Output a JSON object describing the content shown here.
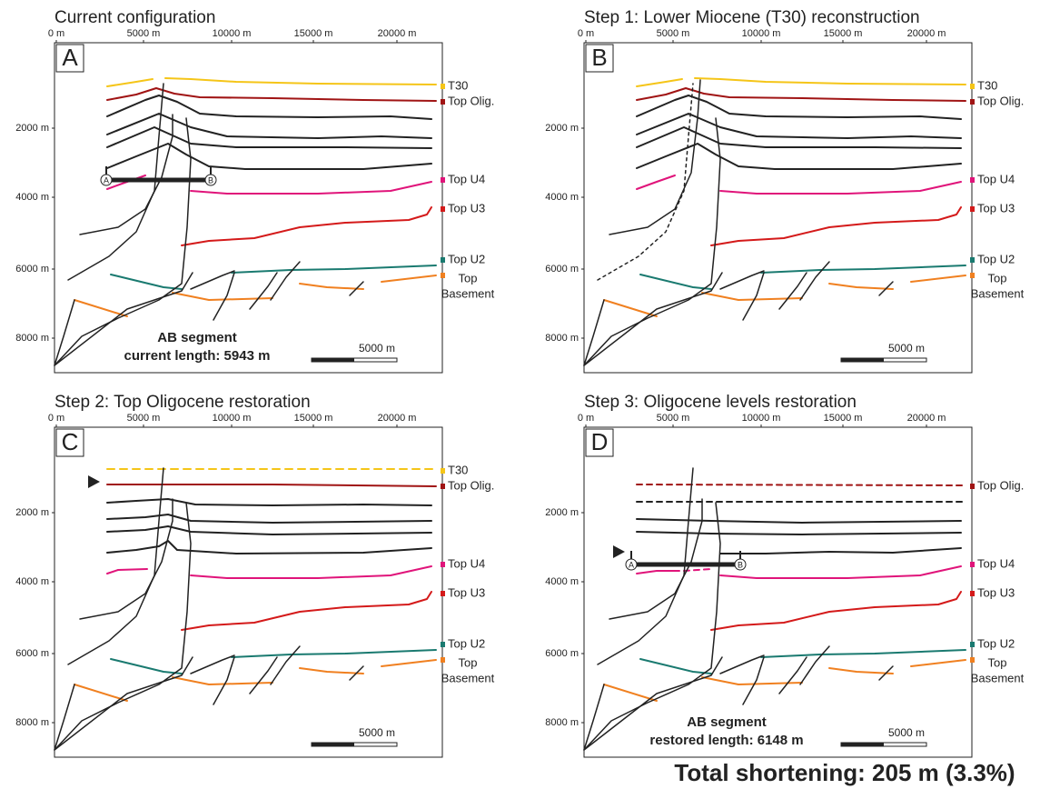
{
  "panels": [
    {
      "title": "Current configuration",
      "letter": "A",
      "x_ticks": [
        "0 m",
        "5000 m",
        "10000 m",
        "15000 m",
        "20000 m"
      ],
      "y_ticks": [
        "2000 m",
        "4000 m",
        "6000 m",
        "8000 m"
      ],
      "layers": [
        {
          "name": "T30",
          "color": "#f5c518"
        },
        {
          "name": "Top Olig.",
          "color": "#a01414"
        },
        {
          "name": "Top U4",
          "color": "#e0147a"
        },
        {
          "name": "Top U3",
          "color": "#d41a1a"
        },
        {
          "name": "Top U2",
          "color": "#1a7a70"
        }
      ],
      "basement": {
        "color": "#f08020",
        "label": [
          "Top",
          "Basement"
        ]
      },
      "segment": {
        "ends": [
          "A",
          "B"
        ],
        "label": [
          "AB segment",
          "current length: 5943 m"
        ]
      },
      "scale": "5000 m"
    },
    {
      "title": "Step 1: Lower Miocene (T30) reconstruction",
      "letter": "B",
      "x_ticks": [
        "0 m",
        "5000 m",
        "10000 m",
        "15000 m",
        "20000 m"
      ],
      "y_ticks": [
        "2000 m",
        "4000 m",
        "6000 m",
        "8000 m"
      ],
      "layers": [
        {
          "name": "T30",
          "color": "#f5c518"
        },
        {
          "name": "Top Olig.",
          "color": "#a01414"
        },
        {
          "name": "Top U4",
          "color": "#e0147a"
        },
        {
          "name": "Top U3",
          "color": "#d41a1a"
        },
        {
          "name": "Top U2",
          "color": "#1a7a70"
        }
      ],
      "basement": {
        "color": "#f08020",
        "label": [
          "Top",
          "Basement"
        ]
      },
      "scale": "5000 m"
    },
    {
      "title": "Step 2: Top Oligocene restoration",
      "letter": "C",
      "x_ticks": [
        "0 m",
        "5000 m",
        "10000 m",
        "15000 m",
        "20000 m"
      ],
      "y_ticks": [
        "2000 m",
        "4000 m",
        "6000 m",
        "8000 m"
      ],
      "layers": [
        {
          "name": "T30",
          "color": "#f5c518"
        },
        {
          "name": "Top Olig.",
          "color": "#a01414"
        },
        {
          "name": "Top U4",
          "color": "#e0147a"
        },
        {
          "name": "Top U3",
          "color": "#d41a1a"
        },
        {
          "name": "Top U2",
          "color": "#1a7a70"
        }
      ],
      "basement": {
        "color": "#f08020",
        "label": [
          "Top",
          "Basement"
        ]
      },
      "scale": "5000 m"
    },
    {
      "title": "Step 3: Oligocene levels restoration",
      "letter": "D",
      "x_ticks": [
        "0 m",
        "5000 m",
        "10000 m",
        "15000 m",
        "20000 m"
      ],
      "y_ticks": [
        "2000 m",
        "4000 m",
        "6000 m",
        "8000 m"
      ],
      "layers": [
        {
          "name": "Top Olig.",
          "color": "#a01414"
        },
        {
          "name": "Top U4",
          "color": "#e0147a"
        },
        {
          "name": "Top U3",
          "color": "#d41a1a"
        },
        {
          "name": "Top U2",
          "color": "#1a7a70"
        }
      ],
      "basement": {
        "color": "#f08020",
        "label": [
          "Top",
          "Basement"
        ]
      },
      "segment": {
        "ends": [
          "A",
          "B"
        ],
        "label": [
          "AB segment",
          "restored length: 6148 m"
        ]
      },
      "scale": "5000 m"
    }
  ],
  "summary": "Total shortening: 205 m (3.3%)"
}
